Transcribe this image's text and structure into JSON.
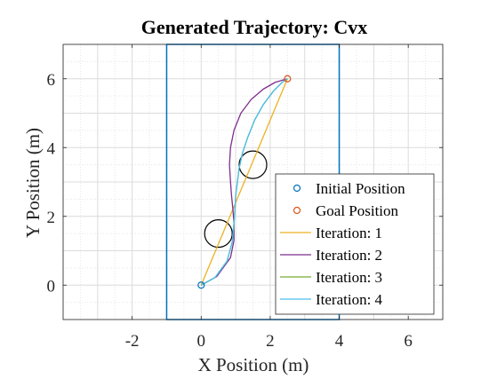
{
  "chart_data": {
    "type": "line",
    "title": "Generated Trajectory: Cvx",
    "xlabel": "X Position (m)",
    "ylabel": "Y Position (m)",
    "xlim": [
      -4,
      7
    ],
    "ylim": [
      -1,
      7
    ],
    "xticks": [
      -2,
      0,
      2,
      4,
      6
    ],
    "yticks": [
      0,
      2,
      4,
      6
    ],
    "grid": "major-and-minor",
    "legend_position": "bottom-right",
    "boundary": {
      "x": [
        -1,
        4
      ],
      "y": [
        -1,
        7
      ],
      "color": "#0072BD"
    },
    "obstacles": [
      {
        "cx": 0.5,
        "cy": 1.5,
        "r": 0.4,
        "color": "#000000"
      },
      {
        "cx": 1.5,
        "cy": 3.5,
        "r": 0.4,
        "color": "#000000"
      }
    ],
    "markers": [
      {
        "name": "Initial Position",
        "x": 0,
        "y": 0,
        "color": "#0072BD"
      },
      {
        "name": "Goal Position",
        "x": 2.5,
        "y": 6,
        "color": "#D95319"
      }
    ],
    "series": [
      {
        "name": "Iteration: 1",
        "color": "#EDB120",
        "x": [
          0,
          2.5
        ],
        "y": [
          0,
          6
        ]
      },
      {
        "name": "Iteration: 2",
        "color": "#7E2F8E",
        "x": [
          0,
          0.45,
          0.85,
          0.95,
          0.95,
          0.92,
          0.88,
          0.85,
          0.82,
          0.85,
          0.95,
          1.15,
          1.45,
          1.8,
          2.15,
          2.5
        ],
        "y": [
          0,
          0.25,
          0.8,
          1.3,
          1.8,
          2.2,
          2.6,
          3.0,
          3.5,
          4.0,
          4.5,
          5.0,
          5.4,
          5.7,
          5.9,
          6
        ]
      },
      {
        "name": "Iteration: 3",
        "color": "#77AC30",
        "x": [
          0,
          0.4,
          0.75,
          0.9,
          0.95,
          0.98,
          1.0,
          1.05,
          1.1,
          1.2,
          1.35,
          1.55,
          1.8,
          2.1,
          2.35,
          2.5
        ],
        "y": [
          0,
          0.22,
          0.7,
          1.25,
          1.8,
          2.2,
          2.6,
          3.0,
          3.4,
          3.85,
          4.3,
          4.8,
          5.25,
          5.65,
          5.9,
          6
        ]
      },
      {
        "name": "Iteration: 4",
        "color": "#4DBEEE",
        "x": [
          0,
          0.4,
          0.75,
          0.9,
          0.95,
          0.98,
          1.0,
          1.05,
          1.1,
          1.2,
          1.35,
          1.55,
          1.8,
          2.1,
          2.35,
          2.5
        ],
        "y": [
          0,
          0.22,
          0.7,
          1.25,
          1.8,
          2.2,
          2.6,
          3.0,
          3.4,
          3.85,
          4.3,
          4.8,
          5.25,
          5.65,
          5.9,
          6
        ]
      }
    ]
  }
}
